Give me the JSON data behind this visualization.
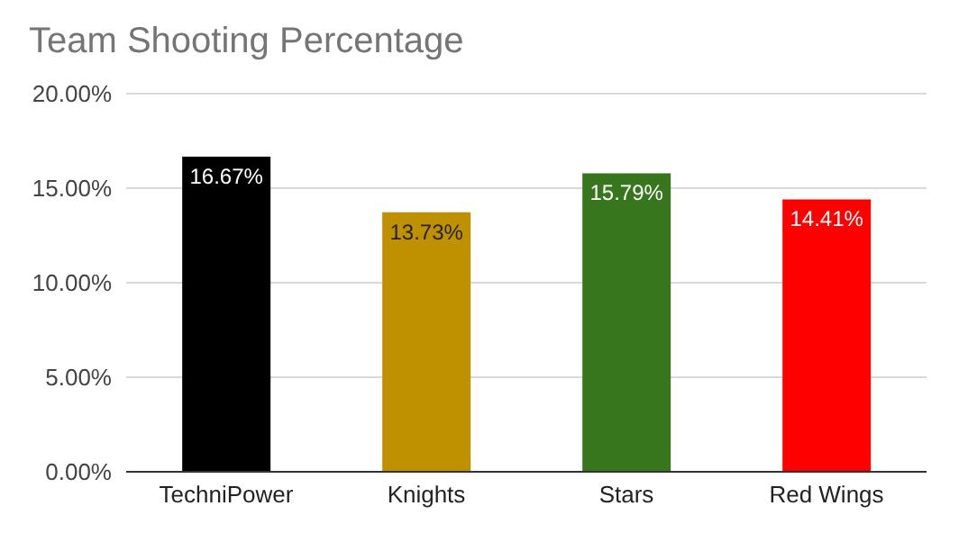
{
  "chart_data": {
    "type": "bar",
    "title": "Team Shooting Percentage",
    "categories": [
      "TechniPower",
      "Knights",
      "Stars",
      "Red Wings"
    ],
    "values": [
      16.67,
      13.73,
      15.79,
      14.41
    ],
    "colors": [
      "#000000",
      "#bf9000",
      "#38761d",
      "#ff0000"
    ],
    "value_labels": [
      "16.67%",
      "13.73%",
      "15.79%",
      "14.41%"
    ],
    "ylim": [
      0,
      20
    ],
    "yticks": [
      {
        "value": 0,
        "label": "0.00%"
      },
      {
        "value": 5,
        "label": "5.00%"
      },
      {
        "value": 10,
        "label": "10.00%"
      },
      {
        "value": 15,
        "label": "15.00%"
      },
      {
        "value": 20,
        "label": "20.00%"
      }
    ],
    "grid": "y"
  }
}
